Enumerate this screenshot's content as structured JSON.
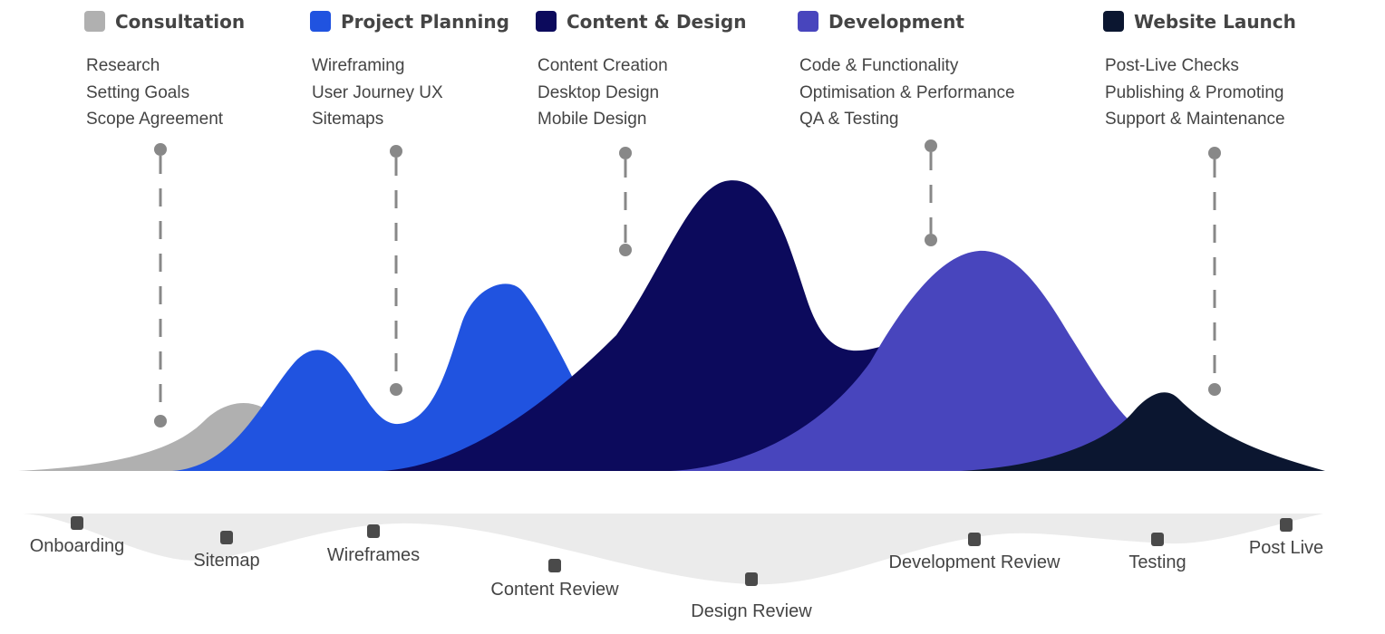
{
  "colors": {
    "consultation": "#b0b0b0",
    "project_planning": "#2053e0",
    "content_design": "#0c0a5c",
    "development": "#4845bd",
    "website_launch": "#0b1630",
    "band": "#ebebeb",
    "marker": "#4a4a4a",
    "connector": "#888888"
  },
  "phases": [
    {
      "title": "Consultation",
      "items": [
        "Research",
        "Setting Goals",
        "Scope Agreement"
      ]
    },
    {
      "title": "Project Planning",
      "items": [
        "Wireframing",
        "User Journey UX",
        "Sitemaps"
      ]
    },
    {
      "title": "Content & Design",
      "items": [
        "Content Creation",
        "Desktop Design",
        "Mobile Design"
      ]
    },
    {
      "title": "Development",
      "items": [
        "Code & Functionality",
        "Optimisation & Performance",
        "QA & Testing"
      ]
    },
    {
      "title": "Website Launch",
      "items": [
        "Post-Live Checks",
        "Publishing & Promoting",
        "Support & Maintenance"
      ]
    }
  ],
  "milestones": [
    "Onboarding",
    "Sitemap",
    "Wireframes",
    "Content Review",
    "Design Review",
    "Development Review",
    "Testing",
    "Post Live"
  ]
}
